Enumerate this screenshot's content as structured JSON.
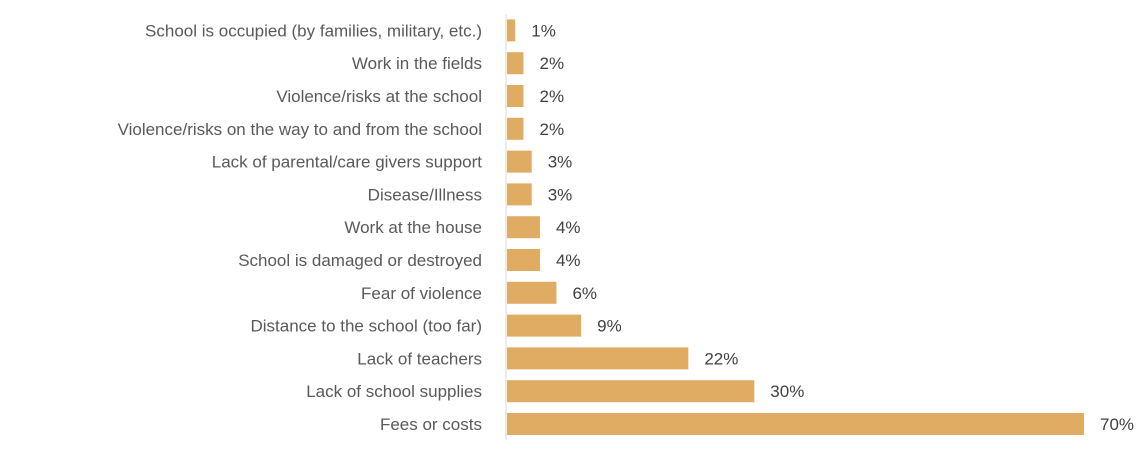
{
  "chart_data": {
    "type": "bar",
    "orientation": "horizontal",
    "categories": [
      "School is occupied (by families, military, etc.)",
      "Work in the fields",
      "Violence/risks at the school",
      "Violence/risks on the way to and from the school",
      "Lack of parental/care givers support",
      "Disease/Illness",
      "Work at the house",
      "School is damaged or destroyed",
      "Fear of violence",
      "Distance to the school (too far)",
      "Lack of teachers",
      "Lack of school supplies",
      "Fees or costs"
    ],
    "values": [
      1,
      2,
      2,
      2,
      3,
      3,
      4,
      4,
      6,
      9,
      22,
      30,
      70
    ],
    "value_labels": [
      "1%",
      "2%",
      "2%",
      "2%",
      "3%",
      "3%",
      "4%",
      "4%",
      "6%",
      "9%",
      "22%",
      "30%",
      "70%"
    ],
    "xlim": [
      0,
      70
    ],
    "grid": false,
    "bar_color": "#E0AC64",
    "axis_color": "#D9D9D9"
  }
}
